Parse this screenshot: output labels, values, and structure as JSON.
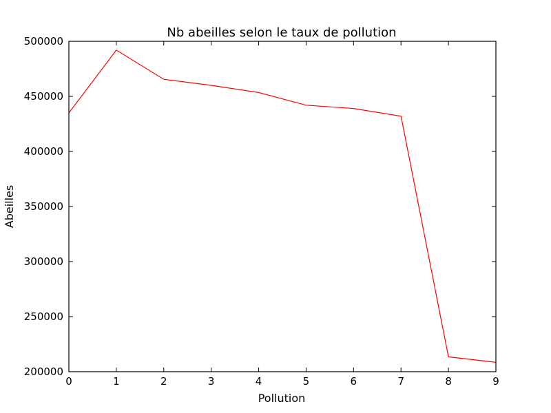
{
  "chart_data": {
    "type": "line",
    "title": "Nb abeilles selon le taux de pollution",
    "xlabel": "Pollution",
    "ylabel": "Abeilles",
    "x": [
      0,
      1,
      2,
      3,
      4,
      5,
      6,
      7,
      8,
      9
    ],
    "series": [
      {
        "values": [
          435000,
          492000,
          465500,
          460000,
          453500,
          442000,
          439000,
          432000,
          213500,
          208500
        ],
        "color": "#ff0000"
      }
    ],
    "xlim": [
      0,
      9
    ],
    "ylim": [
      200000,
      500000
    ],
    "xticks": [
      0,
      1,
      2,
      3,
      4,
      5,
      6,
      7,
      8,
      9
    ],
    "yticks": [
      200000,
      250000,
      300000,
      350000,
      400000,
      450000,
      500000
    ],
    "grid": false
  }
}
